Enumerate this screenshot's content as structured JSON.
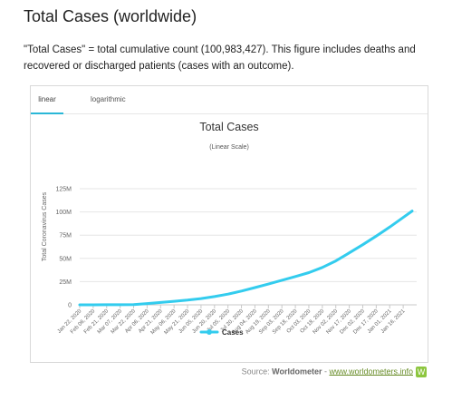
{
  "page": {
    "heading": "Total Cases (worldwide)",
    "description": "\"Total Cases\" = total cumulative count (100,983,427). This figure includes deaths and recovered or discharged patients (cases with an outcome)."
  },
  "tabs": [
    {
      "label": "linear",
      "active": true
    },
    {
      "label": "logarithmic",
      "active": false
    }
  ],
  "source": {
    "prefix": "Source: ",
    "name": "Worldometer",
    "separator": " - ",
    "link_text": "www.worldometers.info",
    "logo_glyph": "W"
  },
  "chart_data": {
    "type": "line",
    "title": "Total Cases",
    "subtitle": "(Linear Scale)",
    "ylabel": "Total Coronavirus Cases",
    "xlabel": "",
    "ylim": [
      0,
      125000000
    ],
    "yticks": [
      0,
      25000000,
      50000000,
      75000000,
      100000000,
      125000000
    ],
    "ytick_labels": [
      "0",
      "25M",
      "50M",
      "75M",
      "100M",
      "125M"
    ],
    "x_tick_labels": [
      "Jan 22, 2020",
      "Feb 06, 2020",
      "Feb 21, 2020",
      "Mar 07, 2020",
      "Mar 22, 2020",
      "Apr 06, 2020",
      "Apr 21, 2020",
      "May 06, 2020",
      "May 21, 2020",
      "Jun 05, 2020",
      "Jun 20, 2020",
      "Jul 05, 2020",
      "Jul 20, 2020",
      "Aug 04, 2020",
      "Aug 19, 2020",
      "Sep 03, 2020",
      "Sep 18, 2020",
      "Oct 03, 2020",
      "Oct 18, 2020",
      "Nov 02, 2020",
      "Nov 17, 2020",
      "Dec 02, 2020",
      "Dec 17, 2020",
      "Jan 01, 2021",
      "Jan 16, 2021"
    ],
    "grid": true,
    "legend": "bottom-center",
    "series": [
      {
        "name": "Cases",
        "color": "#33ccee",
        "x": [
          "Jan 22, 2020",
          "Feb 06, 2020",
          "Feb 21, 2020",
          "Mar 07, 2020",
          "Mar 22, 2020",
          "Apr 06, 2020",
          "Apr 21, 2020",
          "May 06, 2020",
          "May 21, 2020",
          "Jun 05, 2020",
          "Jun 20, 2020",
          "Jul 05, 2020",
          "Jul 20, 2020",
          "Aug 04, 2020",
          "Aug 19, 2020",
          "Sep 03, 2020",
          "Sep 18, 2020",
          "Oct 03, 2020",
          "Oct 18, 2020",
          "Nov 02, 2020",
          "Nov 17, 2020",
          "Dec 02, 2020",
          "Dec 17, 2020",
          "Jan 01, 2021",
          "Jan 16, 2021",
          "Jan 26, 2021"
        ],
        "values": [
          600,
          28300,
          76000,
          106000,
          340000,
          1350000,
          2550000,
          3770000,
          5100000,
          6750000,
          8900000,
          11500000,
          14800000,
          18600000,
          22400000,
          26500000,
          30500000,
          34700000,
          40200000,
          47300000,
          56000000,
          64700000,
          74000000,
          83700000,
          94000000,
          100983427
        ]
      }
    ]
  }
}
